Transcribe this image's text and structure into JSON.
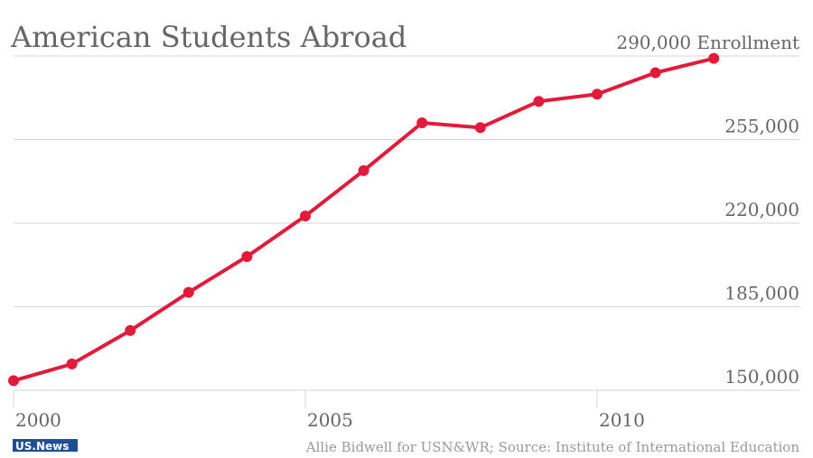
{
  "chart_data": {
    "type": "line",
    "title": "American Students Abroad",
    "source": "Allie Bidwell for USN&WR; Source: Institute of International Education",
    "logo": "US.News",
    "x": [
      2000,
      2001,
      2002,
      2003,
      2004,
      2005,
      2006,
      2007,
      2008,
      2009,
      2010,
      2011,
      2012
    ],
    "values": [
      154000,
      161000,
      175000,
      191000,
      206000,
      223000,
      242000,
      262000,
      260000,
      271000,
      274000,
      283000,
      289000
    ],
    "color": "#e31b3b",
    "xlim": [
      2000,
      2013.7
    ],
    "xticks": [
      2000,
      2005,
      2010
    ],
    "ylim": [
      150000,
      290000
    ],
    "yticks": [
      {
        "value": 150000,
        "label": "150,000"
      },
      {
        "value": 185000,
        "label": "185,000"
      },
      {
        "value": 220000,
        "label": "220,000"
      },
      {
        "value": 255000,
        "label": "255,000"
      },
      {
        "value": 290000,
        "label": "290,000 Enrollment"
      }
    ],
    "grid": true
  }
}
